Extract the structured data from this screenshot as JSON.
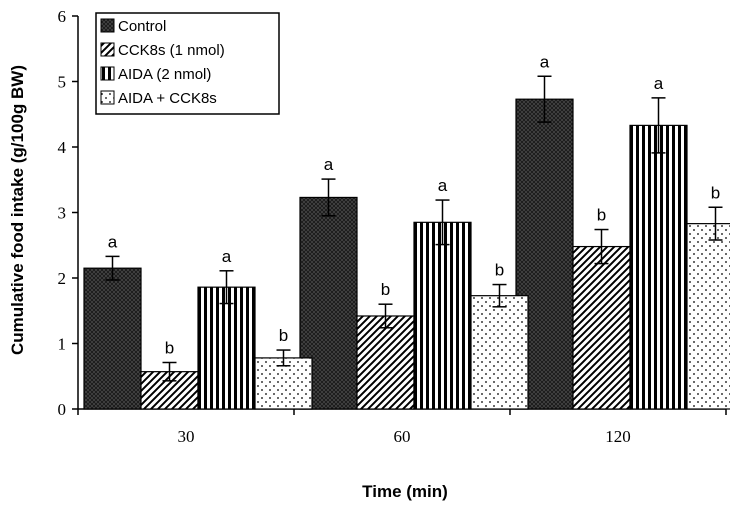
{
  "chart_data": {
    "type": "bar",
    "title": "",
    "xlabel": "Time (min)",
    "ylabel": "Cumulative food intake (g/100g BW)",
    "categories": [
      "30",
      "60",
      "120"
    ],
    "ylim": [
      0,
      6
    ],
    "yticks": [
      "0",
      "1",
      "2",
      "3",
      "4",
      "5",
      "6"
    ],
    "grid": false,
    "legend_position": "top-left",
    "series": [
      {
        "name": "Control",
        "pattern": "dark-crosshatch",
        "values": [
          2.15,
          3.23,
          4.73
        ],
        "errors": [
          0.18,
          0.28,
          0.35
        ],
        "labels": [
          "a",
          "a",
          "a"
        ]
      },
      {
        "name": "CCK8s (1 nmol)",
        "pattern": "diagonal-stripes",
        "values": [
          0.57,
          1.42,
          2.48
        ],
        "errors": [
          0.14,
          0.18,
          0.26
        ],
        "labels": [
          "b",
          "b",
          "b"
        ]
      },
      {
        "name": "AIDA (2 nmol)",
        "pattern": "vertical-stripes",
        "values": [
          1.86,
          2.85,
          4.33
        ],
        "errors": [
          0.25,
          0.34,
          0.42
        ],
        "labels": [
          "a",
          "a",
          "a"
        ]
      },
      {
        "name": "AIDA + CCK8s",
        "pattern": "dots",
        "values": [
          0.78,
          1.73,
          2.83
        ],
        "errors": [
          0.12,
          0.17,
          0.25
        ],
        "labels": [
          "b",
          "b",
          "b"
        ]
      }
    ]
  }
}
